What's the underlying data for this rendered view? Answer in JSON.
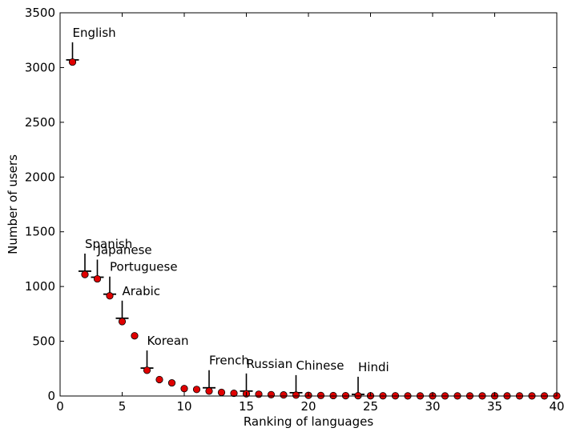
{
  "chart_data": {
    "type": "scatter",
    "title": "",
    "xlabel": "Ranking of languages",
    "ylabel": "Number of users",
    "xlim": [
      0,
      40
    ],
    "ylim": [
      0,
      3500
    ],
    "xticks": [
      0,
      5,
      10,
      15,
      20,
      25,
      30,
      35,
      40
    ],
    "yticks": [
      0,
      500,
      1000,
      1500,
      2000,
      2500,
      3000,
      3500
    ],
    "grid": false,
    "legend": "none",
    "marker_color": "#e00000",
    "points": [
      {
        "x": 1,
        "y": 3050
      },
      {
        "x": 2,
        "y": 1110
      },
      {
        "x": 3,
        "y": 1070
      },
      {
        "x": 4,
        "y": 915
      },
      {
        "x": 5,
        "y": 680
      },
      {
        "x": 6,
        "y": 550
      },
      {
        "x": 7,
        "y": 235
      },
      {
        "x": 8,
        "y": 150
      },
      {
        "x": 9,
        "y": 120
      },
      {
        "x": 10,
        "y": 68
      },
      {
        "x": 11,
        "y": 60
      },
      {
        "x": 12,
        "y": 45
      },
      {
        "x": 13,
        "y": 33
      },
      {
        "x": 14,
        "y": 25
      },
      {
        "x": 15,
        "y": 20
      },
      {
        "x": 16,
        "y": 16
      },
      {
        "x": 17,
        "y": 12
      },
      {
        "x": 18,
        "y": 10
      },
      {
        "x": 19,
        "y": 8
      },
      {
        "x": 20,
        "y": 6
      },
      {
        "x": 21,
        "y": 5
      },
      {
        "x": 22,
        "y": 4
      },
      {
        "x": 23,
        "y": 3
      },
      {
        "x": 24,
        "y": 3
      },
      {
        "x": 25,
        "y": 2
      },
      {
        "x": 26,
        "y": 2
      },
      {
        "x": 27,
        "y": 2
      },
      {
        "x": 28,
        "y": 1
      },
      {
        "x": 29,
        "y": 1
      },
      {
        "x": 30,
        "y": 1
      },
      {
        "x": 31,
        "y": 1
      },
      {
        "x": 32,
        "y": 1
      },
      {
        "x": 33,
        "y": 1
      },
      {
        "x": 34,
        "y": 1
      },
      {
        "x": 35,
        "y": 1
      },
      {
        "x": 36,
        "y": 1
      },
      {
        "x": 37,
        "y": 1
      },
      {
        "x": 38,
        "y": 1
      },
      {
        "x": 39,
        "y": 1
      },
      {
        "x": 40,
        "y": 1
      }
    ],
    "annotations": [
      {
        "label": "English",
        "x": 1,
        "y": 3070
      },
      {
        "label": "Spanish",
        "x": 2,
        "y": 1140
      },
      {
        "label": "Japanese",
        "x": 3,
        "y": 1085
      },
      {
        "label": "Portuguese",
        "x": 4,
        "y": 930
      },
      {
        "label": "Arabic",
        "x": 5,
        "y": 710
      },
      {
        "label": "Korean",
        "x": 7,
        "y": 255
      },
      {
        "label": "French",
        "x": 12,
        "y": 75
      },
      {
        "label": "Russian",
        "x": 15,
        "y": 45
      },
      {
        "label": "Chinese",
        "x": 19,
        "y": 30
      },
      {
        "label": "Hindi",
        "x": 24,
        "y": 15
      }
    ]
  }
}
